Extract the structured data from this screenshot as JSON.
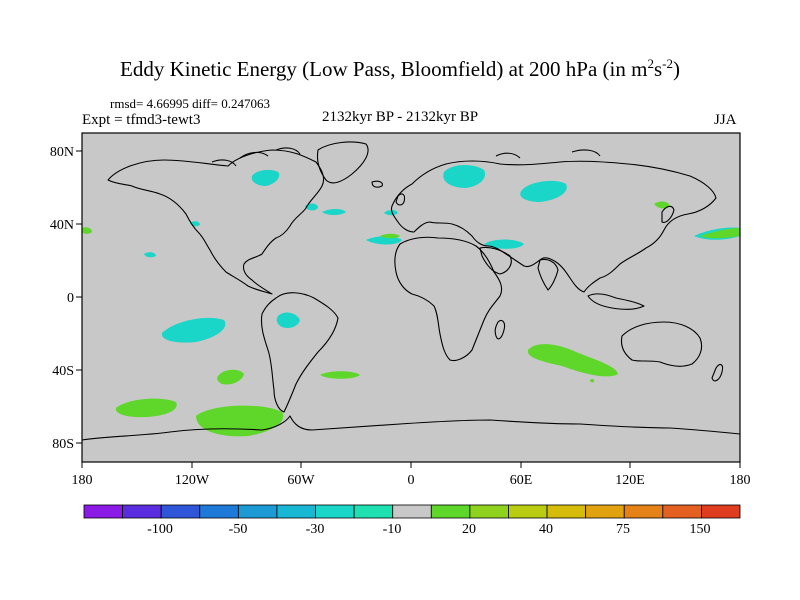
{
  "title": {
    "main": "Eddy Kinetic Energy (Low Pass, Bloomfield) at 200 hPa (in m",
    "sup1": "2",
    "mid": "s",
    "sup2": "-2",
    "end": ")"
  },
  "stats": {
    "rmsd": "rmsd= 4.66995 diff= 0.247063"
  },
  "experiment": "Expt = tfmd3-tewt3",
  "period": "2132kyr BP - 2132kyr BP",
  "season": "JJA",
  "axes": {
    "lat_labels": [
      "80N",
      "40N",
      "0",
      "40S",
      "80S"
    ],
    "lon_labels": [
      "180",
      "120W",
      "60W",
      "0",
      "60E",
      "120E",
      "180"
    ]
  },
  "colorbar": {
    "colors": [
      "#8b1ae6",
      "#5a2de0",
      "#2f56d8",
      "#1e7ad8",
      "#1c9ad6",
      "#18b8d4",
      "#1ad6c8",
      "#1fe0b0",
      "#c8c8c8",
      "#5fd62a",
      "#8fd21e",
      "#b9cc12",
      "#d6bc0a",
      "#e2a210",
      "#e48218",
      "#e46020",
      "#e03c20"
    ],
    "labels": [
      "-100",
      "-50",
      "-30",
      "-10",
      "20",
      "40",
      "75",
      "150"
    ]
  },
  "colors": {
    "background": "#c8c8c8",
    "positive_anomaly": "#5fd62a",
    "negative_anomaly": "#1ad6c8"
  }
}
